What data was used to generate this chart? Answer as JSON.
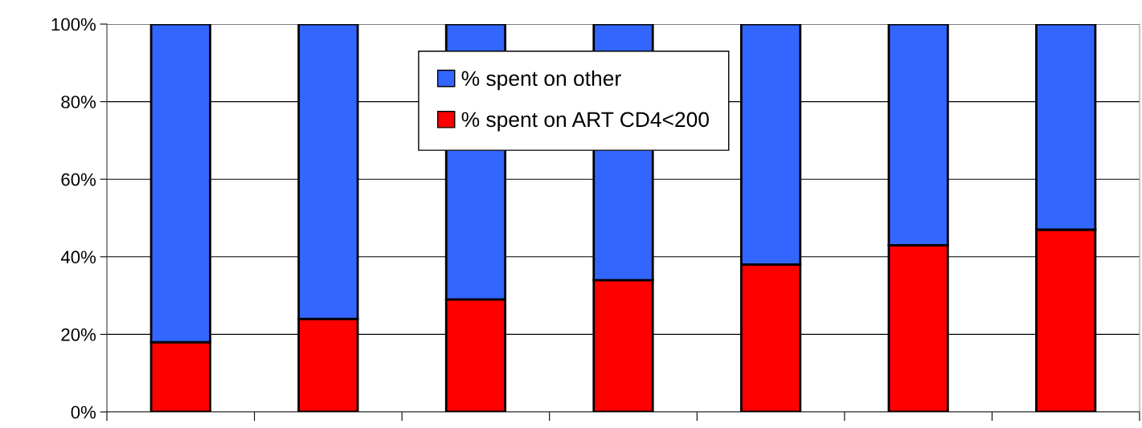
{
  "chart_data": {
    "type": "bar",
    "stacked": true,
    "categories": [
      null,
      null,
      null,
      null,
      null,
      null,
      null
    ],
    "series": [
      {
        "name": "% spent on ART CD4<200",
        "color": "#ff0000",
        "values": [
          18,
          24,
          29,
          34,
          38,
          43,
          47
        ]
      },
      {
        "name": "% spent on other",
        "color": "#3366ff",
        "values": [
          82,
          76,
          71,
          66,
          62,
          57,
          53
        ]
      }
    ],
    "ylim": [
      0,
      100
    ],
    "yticks": [
      {
        "value": 0,
        "label": "0%"
      },
      {
        "value": 20,
        "label": "20%"
      },
      {
        "value": 40,
        "label": "40%"
      },
      {
        "value": 60,
        "label": "60%"
      },
      {
        "value": 80,
        "label": "80%"
      },
      {
        "value": 100,
        "label": "100%"
      }
    ],
    "grid": "y",
    "legend": "top"
  }
}
